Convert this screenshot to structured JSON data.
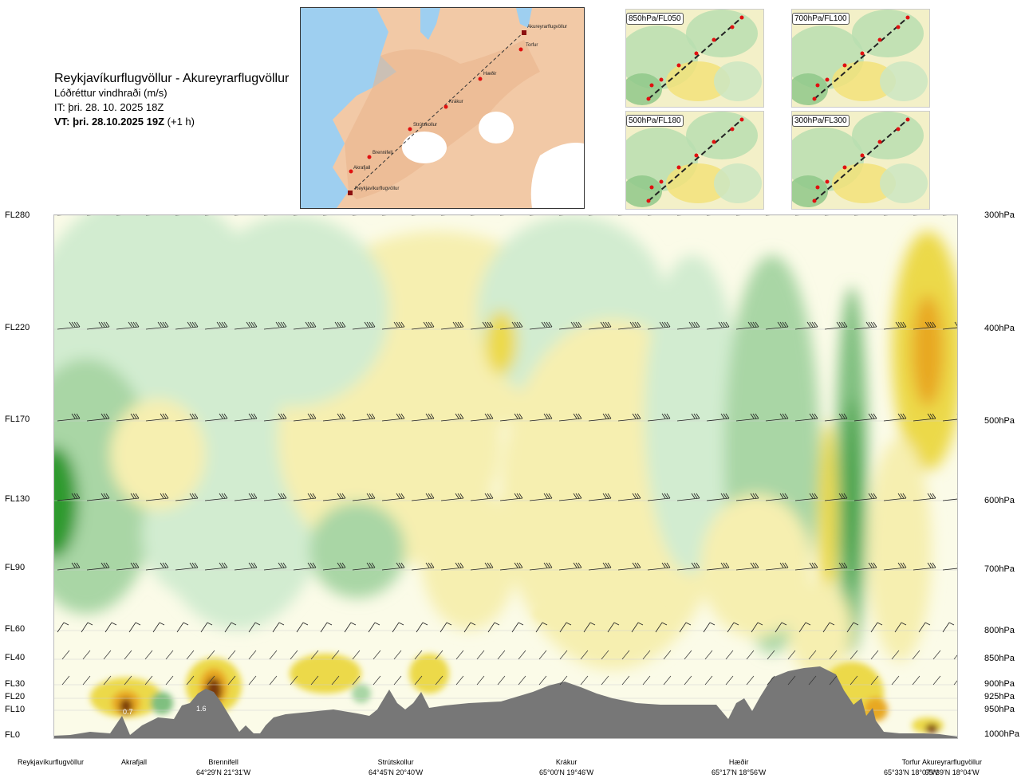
{
  "title": {
    "route": "Reykjavíkurflugvöllur - Akureyrarflugvöllur",
    "variable": "Lóðréttur vindhraði (m/s)",
    "it": "IT: þri. 28. 10. 2025 18Z",
    "vt_bold": "VT: þri. 28.10.2025 19Z",
    "vt_lead": "(+1 h)"
  },
  "map": {
    "points": [
      "Akureyrarflugvöllur",
      "Torfur",
      "Hæðir",
      "Krákur",
      "Strútskollur",
      "Brennifell",
      "Akrafjall",
      "Reykjavíkurflugvöllur"
    ]
  },
  "thumbnails": [
    {
      "label": "850hPa/FL050"
    },
    {
      "label": "700hPa/FL100"
    },
    {
      "label": "500hPa/FL180"
    },
    {
      "label": "300hPa/FL300"
    }
  ],
  "chart_data": {
    "type": "heatmap",
    "title": "",
    "levels": [
      {
        "fl": "FL280",
        "hpa": "300hPa"
      },
      {
        "fl": "FL220",
        "hpa": "400hPa"
      },
      {
        "fl": "FL170",
        "hpa": "500hPa"
      },
      {
        "fl": "FL130",
        "hpa": "600hPa"
      },
      {
        "fl": "FL90",
        "hpa": "700hPa"
      },
      {
        "fl": "FL60",
        "hpa": "800hPa"
      },
      {
        "fl": "FL40",
        "hpa": "850hPa"
      },
      {
        "fl": "FL30",
        "hpa": "900hPa"
      },
      {
        "fl": "FL20",
        "hpa": "925hPa"
      },
      {
        "fl": "FL10",
        "hpa": "950hPa"
      },
      {
        "fl": "FL0",
        "hpa": "1000hPa"
      }
    ],
    "locations": [
      {
        "name": "Reykjavíkurflugvöllur",
        "coord": ""
      },
      {
        "name": "Akrafjall",
        "coord": ""
      },
      {
        "name": "Brennifell",
        "coord": "64°29'N 21°31'W"
      },
      {
        "name": "Strútskollur",
        "coord": "64°45'N 20°40'W"
      },
      {
        "name": "Krákur",
        "coord": "65°00'N 19°46'W"
      },
      {
        "name": "Hæðir",
        "coord": "65°17'N 18°56'W"
      },
      {
        "name": "Torfur",
        "coord": "65°33'N 18°07'W"
      },
      {
        "name": "Akureyrarflugvöllur",
        "coord": "65°39'N 18°04'W"
      }
    ],
    "annotations": [
      "0.7",
      "1.6"
    ],
    "colors": {
      "up_strong": "#2e9a2e",
      "up_mid": "#7fbf7f",
      "up_light": "#a9d6a5",
      "up_weak": "#d2ecd0",
      "neutral": "#fbfbe8",
      "down_weak": "#f6efb0",
      "down_mid": "#ecd94a",
      "down_strong": "#e8a820",
      "down_max": "#7a3a0a",
      "terrain": "#777777"
    }
  }
}
